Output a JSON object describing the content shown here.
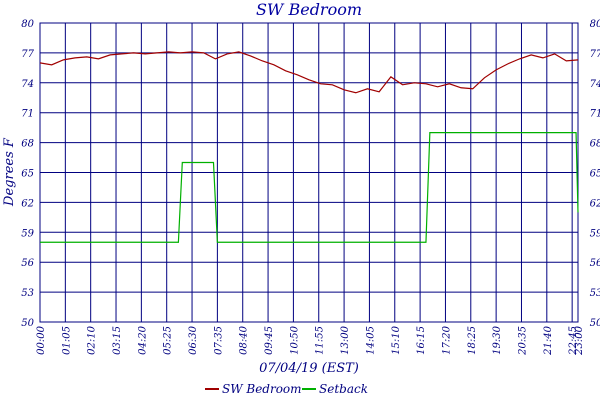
{
  "chart_data": {
    "type": "line",
    "title": "SW Bedroom",
    "ylabel": "Degrees F",
    "xlabel": "07/04/19 (EST)",
    "xlim": [
      0,
      1380
    ],
    "ylim": [
      50,
      80
    ],
    "grid": true,
    "legend": "bottom",
    "yticks": [
      50,
      53,
      56,
      59,
      62,
      65,
      68,
      71,
      74,
      77,
      80
    ],
    "xticks": [
      {
        "value": 0,
        "label": "00:00"
      },
      {
        "value": 65,
        "label": "01:05"
      },
      {
        "value": 130,
        "label": "02:10"
      },
      {
        "value": 195,
        "label": "03:15"
      },
      {
        "value": 260,
        "label": "04:20"
      },
      {
        "value": 325,
        "label": "05:25"
      },
      {
        "value": 390,
        "label": "06:30"
      },
      {
        "value": 455,
        "label": "07:35"
      },
      {
        "value": 520,
        "label": "08:40"
      },
      {
        "value": 585,
        "label": "09:45"
      },
      {
        "value": 650,
        "label": "10:50"
      },
      {
        "value": 715,
        "label": "11:55"
      },
      {
        "value": 780,
        "label": "13:00"
      },
      {
        "value": 845,
        "label": "14:05"
      },
      {
        "value": 910,
        "label": "15:10"
      },
      {
        "value": 975,
        "label": "16:15"
      },
      {
        "value": 1040,
        "label": "17:20"
      },
      {
        "value": 1105,
        "label": "18:25"
      },
      {
        "value": 1170,
        "label": "19:30"
      },
      {
        "value": 1235,
        "label": "20:35"
      },
      {
        "value": 1300,
        "label": "21:40"
      },
      {
        "value": 1365,
        "label": "22:45"
      },
      {
        "value": 1380,
        "label": "23:00"
      }
    ],
    "series": [
      {
        "name": "SW Bedroom",
        "color": "#a00000",
        "x": [
          0,
          30,
          60,
          90,
          120,
          150,
          180,
          210,
          240,
          270,
          300,
          330,
          360,
          390,
          420,
          450,
          480,
          510,
          540,
          570,
          600,
          630,
          660,
          690,
          720,
          750,
          780,
          810,
          840,
          870,
          900,
          930,
          960,
          990,
          1020,
          1050,
          1080,
          1110,
          1140,
          1170,
          1200,
          1230,
          1260,
          1290,
          1320,
          1350,
          1380
        ],
        "values": [
          76.0,
          75.8,
          76.3,
          76.5,
          76.6,
          76.4,
          76.8,
          76.9,
          77.0,
          76.9,
          77.0,
          77.1,
          77.0,
          77.1,
          77.0,
          76.4,
          76.9,
          77.1,
          76.7,
          76.2,
          75.8,
          75.2,
          74.8,
          74.3,
          73.9,
          73.8,
          73.3,
          73.0,
          73.4,
          73.1,
          74.6,
          73.8,
          74.0,
          73.9,
          73.6,
          73.9,
          73.5,
          73.4,
          74.5,
          75.3,
          75.9,
          76.4,
          76.8,
          76.5,
          76.9,
          76.2,
          76.3
        ]
      },
      {
        "name": "Setback",
        "color": "#00b000",
        "x": [
          0,
          355,
          365,
          445,
          455,
          990,
          1000,
          1375,
          1380
        ],
        "values": [
          58,
          58,
          66,
          66,
          58,
          58,
          69,
          69,
          61
        ]
      }
    ]
  }
}
